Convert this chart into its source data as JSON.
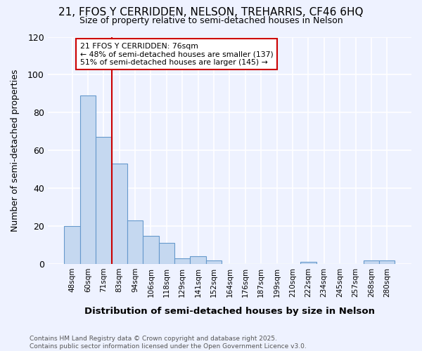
{
  "title": "21, FFOS Y CERRIDDEN, NELSON, TREHARRIS, CF46 6HQ",
  "subtitle": "Size of property relative to semi-detached houses in Nelson",
  "xlabel": "Distribution of semi-detached houses by size in Nelson",
  "ylabel": "Number of semi-detached properties",
  "bins": [
    "48sqm",
    "60sqm",
    "71sqm",
    "83sqm",
    "94sqm",
    "106sqm",
    "118sqm",
    "129sqm",
    "141sqm",
    "152sqm",
    "164sqm",
    "176sqm",
    "187sqm",
    "199sqm",
    "210sqm",
    "222sqm",
    "234sqm",
    "245sqm",
    "257sqm",
    "268sqm",
    "280sqm"
  ],
  "values": [
    20,
    89,
    67,
    53,
    23,
    15,
    11,
    3,
    4,
    2,
    0,
    0,
    0,
    0,
    0,
    1,
    0,
    0,
    0,
    2,
    2
  ],
  "bar_color": "#c5d8f0",
  "bar_edge_color": "#6699cc",
  "red_line_bin_index": 2.5,
  "annotation_text": "21 FFOS Y CERRIDDEN: 76sqm\n← 48% of semi-detached houses are smaller (137)\n51% of semi-detached houses are larger (145) →",
  "annotation_box_color": "#ffffff",
  "annotation_box_edge_color": "#cc0000",
  "red_line_color": "#cc0000",
  "footer_text": "Contains HM Land Registry data © Crown copyright and database right 2025.\nContains public sector information licensed under the Open Government Licence v3.0.",
  "ylim": [
    0,
    120
  ],
  "yticks": [
    0,
    20,
    40,
    60,
    80,
    100,
    120
  ],
  "background_color": "#eef2ff",
  "plot_bg_color": "#eef2ff",
  "grid_color": "#ffffff",
  "title_fontsize": 11,
  "subtitle_fontsize": 9
}
